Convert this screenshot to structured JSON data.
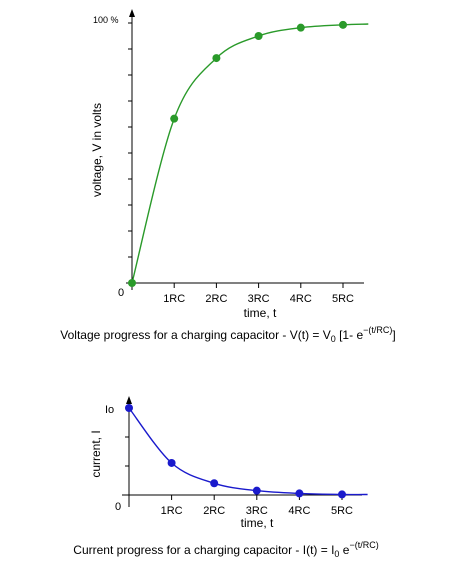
{
  "colors": {
    "voltage": "#2a9a2a",
    "current": "#1a1acc",
    "axis": "#000000"
  },
  "chart_data": [
    {
      "type": "line",
      "y_top_label": "100 %",
      "origin_label": "0",
      "ylabel": "voltage, V in volts",
      "xlabel": "time, t",
      "categories": [
        "1RC",
        "2RC",
        "3RC",
        "4RC",
        "5RC"
      ],
      "xlim": [
        0,
        5.6
      ],
      "ylim": [
        0,
        1.0
      ],
      "series": [
        {
          "values": [
            0,
            0.632,
            0.865,
            0.95,
            0.982,
            0.993
          ],
          "x": [
            0,
            1,
            2,
            3,
            4,
            5
          ]
        }
      ],
      "caption": {
        "pre": "Voltage progress for a charging capacitor - V(t) = V",
        "sub": "0",
        "mid": " [1- e",
        "sup": "−(t/RC)",
        "post": "]"
      }
    },
    {
      "type": "line",
      "y_top_label": "Io",
      "origin_label": "0",
      "ylabel": "current, I",
      "xlabel": "time, t",
      "categories": [
        "1RC",
        "2RC",
        "3RC",
        "4RC",
        "5RC"
      ],
      "xlim": [
        0,
        5.6
      ],
      "ylim": [
        0,
        1.0
      ],
      "series": [
        {
          "values": [
            1,
            0.368,
            0.135,
            0.05,
            0.018,
            0.007
          ],
          "x": [
            0,
            1,
            2,
            3,
            4,
            5
          ]
        }
      ],
      "caption": {
        "pre": "Current progress for a charging capacitor - I(t) = I",
        "sub": "0",
        "mid": " e",
        "sup": "−(t/RC)",
        "post": ""
      }
    }
  ]
}
